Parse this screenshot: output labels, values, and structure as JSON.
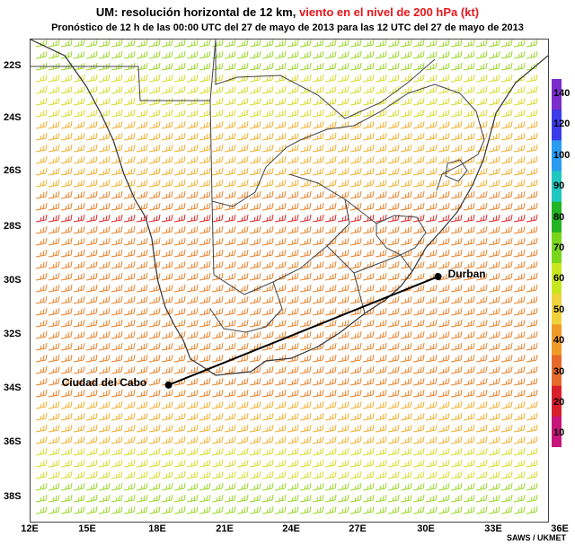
{
  "title": {
    "prefix": "UM: resolución horizontal de 12 km,",
    "highlight": "viento en el nivel de 200 hPa (kt)",
    "highlight_color": "#e8161b"
  },
  "subtitle": "Pronóstico de 12 h de las 00:00 UTC del 27 de mayo de 2013 para las 12 UTC del 27 de mayo de 2013",
  "lat_labels": [
    "22S",
    "24S",
    "26S",
    "28S",
    "30S",
    "32S",
    "34S",
    "36S",
    "38S"
  ],
  "lon_labels": [
    "12E",
    "15E",
    "18E",
    "21E",
    "24E",
    "27E",
    "30E",
    "33E",
    "36E"
  ],
  "cities": [
    {
      "name": "Durban",
      "lon": 30.9,
      "lat": -29.85
    },
    {
      "name": "Ciudad del Cabo",
      "lon": 18.4,
      "lat": -33.9
    }
  ],
  "colorbar": {
    "ticks": [
      "140",
      "120",
      "100",
      "90",
      "80",
      "70",
      "60",
      "50",
      "40",
      "30",
      "20",
      "10"
    ],
    "colors": [
      "#7a2ccc",
      "#3a3ae8",
      "#2a9cf0",
      "#1ec8c0",
      "#22b422",
      "#7ad61a",
      "#c8e61e",
      "#f0d23a",
      "#f09a28",
      "#e66a2a",
      "#d81e2a",
      "#c8147a"
    ]
  },
  "credit": "SAWS / UKMET"
}
